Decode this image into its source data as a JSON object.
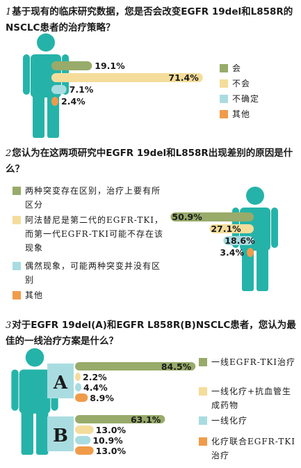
{
  "colors": {
    "figure": "#25b3a9",
    "green": "#98ab6a",
    "cream": "#f4dd9b",
    "cyan": "#a9dce0",
    "orange": "#f09b4a"
  },
  "sections": [
    {
      "num": "1",
      "question": "基于现有的临床研究数据，您是否会改变EGFR 19del和L858R的NSCLC患者的治疗策略？",
      "legend": [
        "会",
        "不会",
        "不确定",
        "其他"
      ]
    },
    {
      "num": "2",
      "question": "您认为在这两项研究中EGFR 19del和L858R出现差别的原因是什么？",
      "legend": [
        "两种突变存在区别，治疗上要有所区分",
        "阿法替尼是第二代的EGFR-TKI，而第一代EGFR-TKI可能不存在该现象",
        "偶然现象，可能两种突变并没有区别",
        "其他"
      ]
    },
    {
      "num": "3",
      "question": "对于EGFR 19del(A)和EGFR L858R(B)NSCLC患者，您认为最佳的一线治疗方案是什么？",
      "legend": [
        "一线EGFR-TKI治疗",
        "一线化疗+抗血管生成药物",
        "一线化疗",
        "化疗联合EGFR-TKI治疗"
      ],
      "group_labels": [
        "A",
        "B"
      ]
    }
  ],
  "chart_data": [
    {
      "type": "bar",
      "categories": [
        "会",
        "不会",
        "不确定",
        "其他"
      ],
      "values": [
        19.1,
        71.4,
        7.1,
        2.4
      ],
      "labels": [
        "19.1%",
        "71.4%",
        "7.1%",
        "2.4%"
      ]
    },
    {
      "type": "bar",
      "categories": [
        "两种突变存在区别，治疗上要有所区分",
        "阿法替尼是第二代的EGFR-TKI，而第一代EGFR-TKI可能不存在该现象",
        "偶然现象，可能两种突变并没有区别",
        "其他"
      ],
      "values": [
        50.9,
        27.1,
        18.6,
        3.4
      ],
      "labels": [
        "50.9%",
        "27.1%",
        "18.6%",
        "3.4%"
      ]
    },
    {
      "type": "bar",
      "categories": [
        "一线EGFR-TKI治疗",
        "一线化疗+抗血管生成药物",
        "一线化疗",
        "化疗联合EGFR-TKI治疗"
      ],
      "series": [
        {
          "name": "A",
          "values": [
            84.5,
            2.2,
            4.4,
            8.9
          ],
          "labels": [
            "84.5%",
            "2.2%",
            "4.4%",
            "8.9%"
          ]
        },
        {
          "name": "B",
          "values": [
            63.1,
            13.0,
            10.9,
            13.0
          ],
          "labels": [
            "63.1%",
            "13.0%",
            "10.9%",
            "13.0%"
          ]
        }
      ]
    }
  ]
}
